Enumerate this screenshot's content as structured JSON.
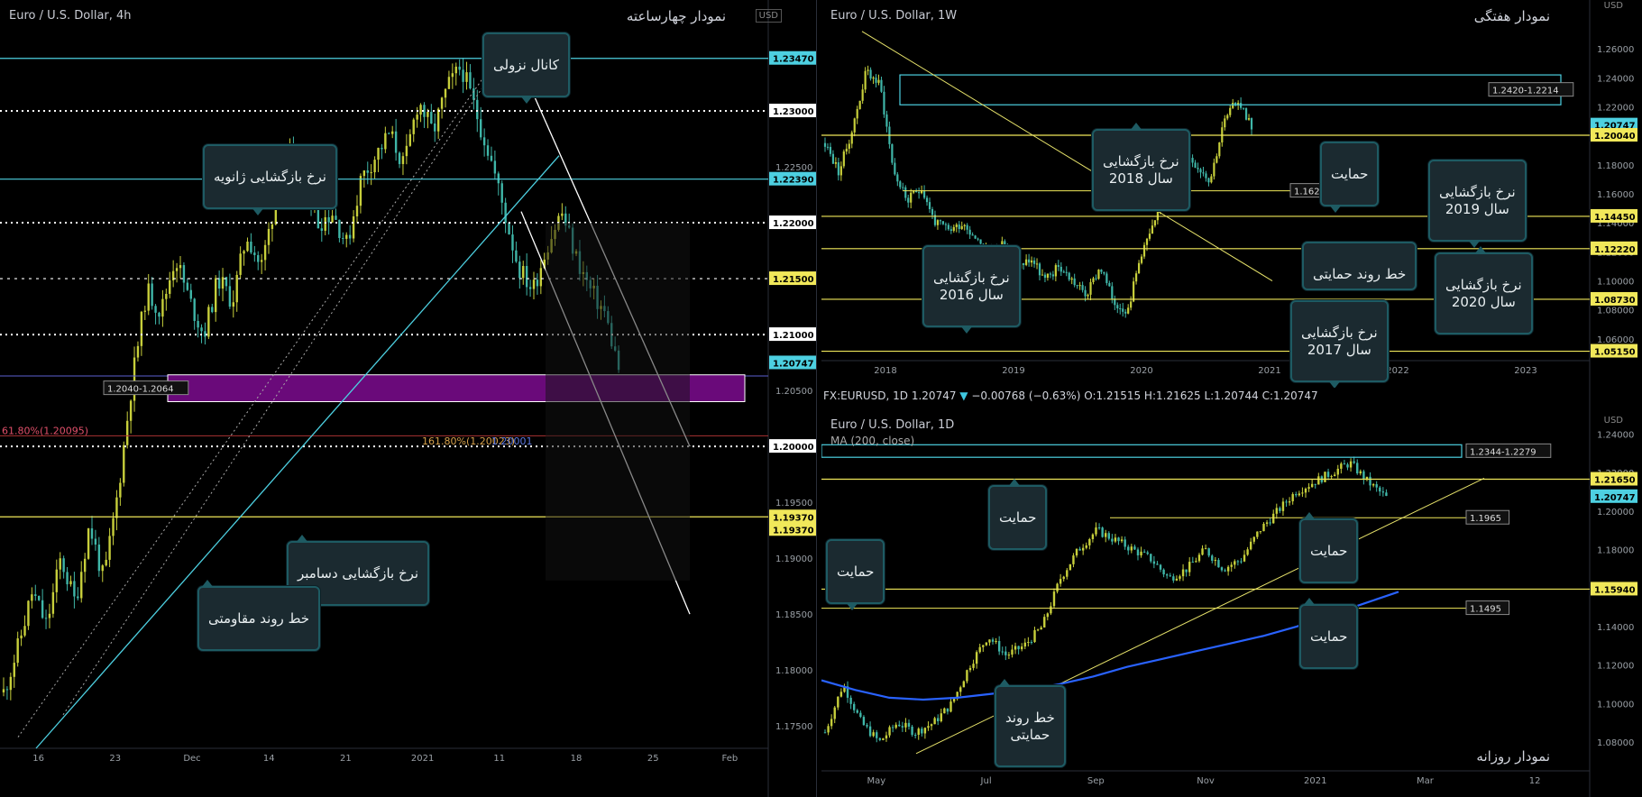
{
  "panel_4h": {
    "symbol": "Euro / U.S. Dollar, 4h",
    "title": "نمودار چهارساعته",
    "currency": "USD",
    "price_tags": [
      {
        "value": 1.2347,
        "label": "1.23470",
        "color": "#4dd0e1"
      },
      {
        "value": 1.2239,
        "label": "1.22390",
        "color": "#4dd0e1"
      },
      {
        "value": 1.215,
        "label": "1.21500",
        "color": "#f1e85a"
      },
      {
        "value": 1.20747,
        "label": "1.20747",
        "color": "#4dd0e1"
      },
      {
        "value": 1.1937,
        "label": "1.19370",
        "color": "#f1e85a"
      },
      {
        "value": 1.1937,
        "label": "1.19370",
        "color": "#f1e85a"
      }
    ],
    "white_tags": [
      {
        "value": 1.23,
        "label": "1.23000"
      },
      {
        "value": 1.22,
        "label": "1.22000"
      },
      {
        "value": 1.21,
        "label": "1.21000"
      },
      {
        "value": 1.2,
        "label": "1.20000"
      }
    ],
    "zone_label": "1.2040-1.2064",
    "fib_left": "61.80%(1.20095)",
    "fib_mid": "161.80%(1.20023)",
    "fib_mid2": "1.20001",
    "callouts": {
      "channel": "کانال نزولی",
      "jan_return": "نرخ بازگشایی ژانویه",
      "dec_return": "نرخ بازگشایی دسامبر",
      "resist_trend": "خط روند مقاومتی"
    }
  },
  "panel_1w": {
    "symbol": "Euro / U.S. Dollar, 1W",
    "title": "نمودار هفتگی",
    "currency": "USD",
    "price_tags": [
      {
        "value": 1.20747,
        "label": "1.20747",
        "color": "#4dd0e1"
      },
      {
        "value": 1.2004,
        "label": "1.20040",
        "color": "#f1e85a"
      },
      {
        "value": 1.1445,
        "label": "1.14450",
        "color": "#f1e85a"
      },
      {
        "value": 1.1222,
        "label": "1.12220",
        "color": "#f1e85a"
      },
      {
        "value": 1.0873,
        "label": "1.08730",
        "color": "#f1e85a"
      },
      {
        "value": 1.0515,
        "label": "1.05150",
        "color": "#f1e85a"
      }
    ],
    "box_label": "1.2420-1.2214",
    "support_label": "1.1621",
    "callouts": {
      "y2018": "نرخ بازگشایی\nسال 2018",
      "support": "حمایت",
      "y2019": "نرخ بازگشایی\nسال 2019",
      "y2016": "نرخ بازگشایی\nسال 2016",
      "trend_support": "خط روند حمایتی",
      "y2020": "نرخ بازگشایی\nسال 2020",
      "y2017": "نرخ بازگشایی\nسال 2017"
    }
  },
  "panel_1d": {
    "info": {
      "ticker": "FX:EURUSD, 1D",
      "last": "1.20747",
      "change": "−0.00768 (−0.63%)",
      "ohlc": "O:1.21515 H:1.21625 L:1.20744 C:1.20747"
    },
    "symbol": "Euro / U.S. Dollar, 1D",
    "ma_label": "MA (200, close)",
    "title": "نمودار روزانه",
    "currency": "USD",
    "price_tags": [
      {
        "value": 1.2165,
        "label": "1.21650",
        "color": "#f1e85a"
      },
      {
        "value": 1.20747,
        "label": "1.20747",
        "color": "#4dd0e1"
      },
      {
        "value": 1.1594,
        "label": "1.15940",
        "color": "#f1e85a"
      }
    ],
    "box_label": "1.2344-1.2279",
    "label_1965": "1.1965",
    "label_1495": "1.1495",
    "callouts": {
      "support1": "حمایت",
      "support2": "حمایت",
      "support3": "حمایت",
      "support4": "حمایت",
      "trend_support": "خط روند\nحمایتی"
    }
  },
  "chart_data": [
    {
      "type": "candlestick",
      "title": "Euro / U.S. Dollar, 4h",
      "ylim": [
        1.173,
        1.2375
      ],
      "y_ticks": [
        1.175,
        1.18,
        1.185,
        1.19,
        1.195,
        1.2,
        1.205,
        1.21,
        1.215,
        1.22,
        1.225,
        1.23,
        1.235
      ],
      "y_tick_labels": [
        "1.17500",
        "1.18000",
        "1.18500",
        "1.19000",
        "1.19500",
        "1.20000",
        "1.20500",
        "1.21000",
        "1.21500",
        "1.22000",
        "1.22500",
        "1.23000",
        "1.23500"
      ],
      "x_labels": [
        "16",
        "23",
        "Dec",
        "14",
        "21",
        "2021",
        "11",
        "18",
        "25",
        "Feb"
      ],
      "close_path": [
        1.178,
        1.182,
        1.187,
        1.184,
        1.19,
        1.186,
        1.193,
        1.188,
        1.196,
        1.206,
        1.214,
        1.212,
        1.217,
        1.213,
        1.21,
        1.215,
        1.213,
        1.219,
        1.216,
        1.222,
        1.226,
        1.224,
        1.22,
        1.221,
        1.218,
        1.224,
        1.226,
        1.228,
        1.225,
        1.231,
        1.228,
        1.232,
        1.234,
        1.23,
        1.226,
        1.221,
        1.216,
        1.214,
        1.218,
        1.221,
        1.217,
        1.214,
        1.212,
        1.207
      ],
      "grid": false
    },
    {
      "type": "candlestick",
      "title": "Euro / U.S. Dollar, 1W",
      "ylim": [
        1.045,
        1.275
      ],
      "y_ticks": [
        1.06,
        1.08,
        1.1,
        1.12,
        1.14,
        1.16,
        1.18,
        1.2,
        1.22,
        1.24,
        1.26
      ],
      "y_tick_labels": [
        "1.06000",
        "1.08000",
        "1.10000",
        "1.12000",
        "1.14000",
        "1.16000",
        "1.18000",
        "1.20000",
        "1.22000",
        "1.24000",
        "1.26000"
      ],
      "x_labels": [
        "2018",
        "2019",
        "2020",
        "2021",
        "2022",
        "2023"
      ],
      "close_path": [
        1.195,
        1.175,
        1.205,
        1.245,
        1.235,
        1.175,
        1.155,
        1.165,
        1.14,
        1.135,
        1.14,
        1.13,
        1.12,
        1.125,
        1.11,
        1.115,
        1.1,
        1.11,
        1.1,
        1.09,
        1.11,
        1.085,
        1.08,
        1.12,
        1.14,
        1.17,
        1.19,
        1.18,
        1.17,
        1.21,
        1.225,
        1.207
      ],
      "grid": false
    },
    {
      "type": "candlestick",
      "title": "Euro / U.S. Dollar, 1D",
      "ylim": [
        1.065,
        1.25
      ],
      "y_ticks": [
        1.08,
        1.1,
        1.12,
        1.14,
        1.16,
        1.18,
        1.2,
        1.22,
        1.24
      ],
      "y_tick_labels": [
        "1.08000",
        "1.10000",
        "1.12000",
        "1.14000",
        "1.16000",
        "1.18000",
        "1.20000",
        "1.22000",
        "1.24000"
      ],
      "x_labels": [
        "May",
        "Jul",
        "Sep",
        "Nov",
        "2021",
        "Mar",
        "12"
      ],
      "close_path": [
        1.085,
        1.11,
        1.09,
        1.08,
        1.09,
        1.085,
        1.09,
        1.1,
        1.12,
        1.135,
        1.125,
        1.13,
        1.14,
        1.165,
        1.18,
        1.19,
        1.185,
        1.18,
        1.175,
        1.165,
        1.17,
        1.18,
        1.17,
        1.175,
        1.19,
        1.2,
        1.21,
        1.215,
        1.22,
        1.225,
        1.215,
        1.207
      ],
      "ma200": [
        1.112,
        1.107,
        1.103,
        1.102,
        1.103,
        1.105,
        1.107,
        1.11,
        1.114,
        1.119,
        1.123,
        1.127,
        1.131,
        1.135,
        1.14,
        1.146,
        1.152,
        1.158
      ],
      "grid": false
    }
  ]
}
